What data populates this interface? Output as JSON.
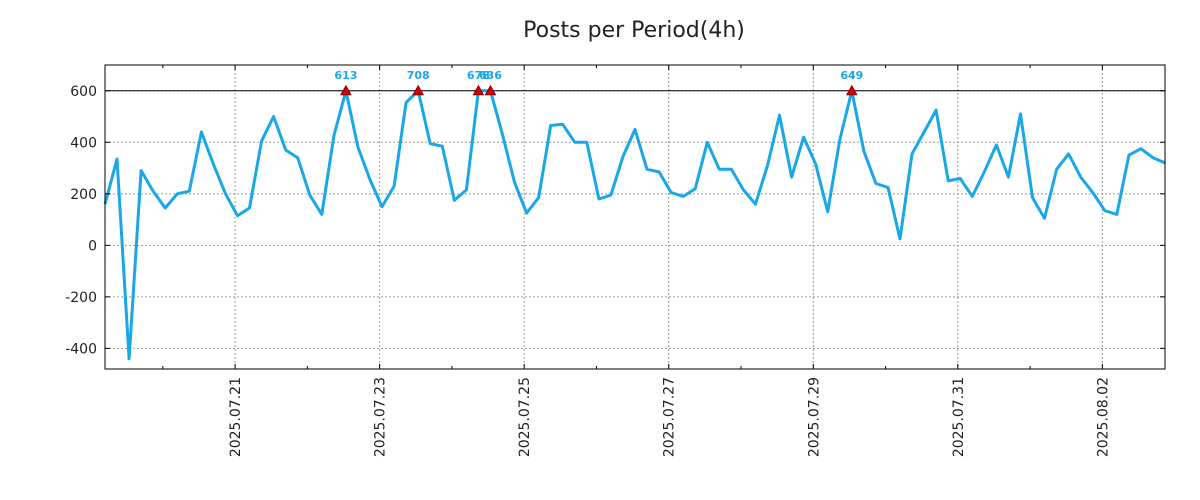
{
  "chart_data": {
    "type": "line",
    "title": "Posts per Period(4h)",
    "xlabel": "",
    "ylabel": "",
    "ylim": [
      -480,
      700
    ],
    "yticks": [
      -400,
      -200,
      0,
      200,
      400,
      600
    ],
    "ytick_labels": [
      "-400",
      "-200",
      "0",
      "200",
      "400",
      "600"
    ],
    "xlim": [
      0,
      88
    ],
    "xticks": [
      10.8,
      22.8,
      34.8,
      46.8,
      58.8,
      70.8,
      82.8
    ],
    "xtick_labels": [
      "2025.07.21",
      "2025.07.23",
      "2025.07.25",
      "2025.07.27",
      "2025.07.29",
      "2025.07.31",
      "2025.08.02"
    ],
    "minor_xticks": [
      4.8,
      16.8,
      28.8,
      40.8,
      52.8,
      64.8,
      76.8
    ],
    "threshold": 600,
    "grid": true,
    "series": [
      {
        "name": "posts",
        "color": "#1aa7e8",
        "x": [
          0,
          1,
          2,
          3,
          4,
          5,
          6,
          7,
          8,
          9,
          10,
          11,
          12,
          13,
          14,
          15,
          16,
          17,
          18,
          19,
          20,
          21,
          22,
          23,
          24,
          25,
          26,
          27,
          28,
          29,
          30,
          31,
          32,
          33,
          34,
          35,
          36,
          37,
          38,
          39,
          40,
          41,
          42,
          43,
          44,
          45,
          46,
          47,
          48,
          49,
          50,
          51,
          52,
          53,
          54,
          55,
          56,
          57,
          58,
          59,
          60,
          61,
          62,
          63,
          64,
          65,
          66,
          67,
          68,
          69,
          70,
          71,
          72,
          73,
          74,
          75,
          76,
          77,
          78,
          79,
          80,
          81,
          82,
          83,
          84,
          85,
          86,
          87,
          88
        ],
        "values": [
          160,
          335,
          -440,
          290,
          210,
          145,
          200,
          210,
          440,
          315,
          200,
          115,
          145,
          405,
          500,
          370,
          340,
          195,
          120,
          425,
          600,
          380,
          255,
          150,
          230,
          555,
          600,
          395,
          385,
          175,
          215,
          600,
          600,
          430,
          245,
          125,
          185,
          465,
          470,
          400,
          400,
          180,
          195,
          345,
          450,
          295,
          285,
          205,
          190,
          220,
          400,
          295,
          295,
          215,
          160,
          310,
          505,
          265,
          420,
          315,
          130,
          410,
          600,
          365,
          240,
          225,
          25,
          355,
          440,
          525,
          250,
          260,
          190,
          285,
          390,
          265,
          510,
          185,
          105,
          295,
          355,
          265,
          205,
          135,
          120,
          350,
          375,
          340,
          320
        ]
      }
    ],
    "peaks": [
      {
        "x": 20,
        "label": "613"
      },
      {
        "x": 26,
        "label": "708"
      },
      {
        "x": 31,
        "label": "678"
      },
      {
        "x": 32,
        "label": "636"
      },
      {
        "x": 62,
        "label": "649"
      }
    ],
    "colors": {
      "line": "#1aa7e8",
      "peak_marker": "#d40000",
      "peak_label": "#1aa7e8",
      "threshold": "#000000",
      "grid": "#9a9a9a",
      "axis": "#000000"
    }
  }
}
